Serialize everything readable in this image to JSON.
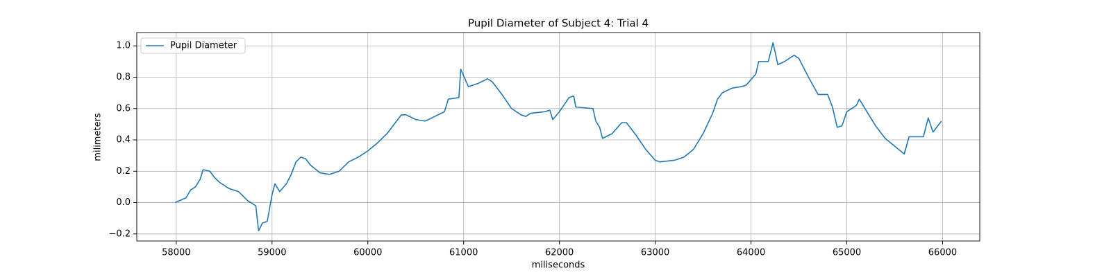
{
  "chart_data": {
    "type": "line",
    "title": "Pupil Diameter of Subject 4: Trial 4",
    "xlabel": "miliseconds",
    "ylabel": "milimeters",
    "x": [
      57988,
      58100,
      58150,
      58200,
      58250,
      58280,
      58350,
      58400,
      58450,
      58550,
      58650,
      58750,
      58830,
      58860,
      58900,
      58950,
      59000,
      59030,
      59080,
      59150,
      59200,
      59250,
      59300,
      59350,
      59400,
      59500,
      59600,
      59700,
      59800,
      59900,
      60000,
      60100,
      60200,
      60300,
      60350,
      60400,
      60500,
      60600,
      60700,
      60800,
      60840,
      60950,
      60970,
      61050,
      61150,
      61250,
      61300,
      61400,
      61500,
      61600,
      61650,
      61700,
      61850,
      61900,
      61930,
      62000,
      62100,
      62150,
      62170,
      62350,
      62380,
      62420,
      62450,
      62550,
      62650,
      62700,
      62800,
      62900,
      63000,
      63050,
      63200,
      63300,
      63400,
      63500,
      63600,
      63650,
      63700,
      63800,
      63900,
      63950,
      64050,
      64080,
      64180,
      64230,
      64280,
      64350,
      64450,
      64500,
      64600,
      64700,
      64800,
      64850,
      64900,
      64950,
      65000,
      65100,
      65130,
      65200,
      65300,
      65400,
      65500,
      65600,
      65650,
      65800,
      65850,
      65900,
      65988
    ],
    "series": [
      {
        "name": "Pupil Diameter",
        "color": "#1f77b4",
        "values": [
          0.0,
          0.03,
          0.08,
          0.1,
          0.15,
          0.21,
          0.2,
          0.16,
          0.13,
          0.09,
          0.07,
          0.01,
          -0.02,
          -0.18,
          -0.13,
          -0.12,
          0.05,
          0.12,
          0.07,
          0.12,
          0.18,
          0.26,
          0.29,
          0.28,
          0.24,
          0.19,
          0.18,
          0.2,
          0.26,
          0.29,
          0.33,
          0.38,
          0.44,
          0.52,
          0.56,
          0.56,
          0.53,
          0.52,
          0.55,
          0.58,
          0.66,
          0.67,
          0.85,
          0.74,
          0.76,
          0.79,
          0.77,
          0.69,
          0.6,
          0.56,
          0.55,
          0.57,
          0.58,
          0.59,
          0.53,
          0.58,
          0.67,
          0.68,
          0.61,
          0.6,
          0.52,
          0.48,
          0.41,
          0.44,
          0.51,
          0.51,
          0.43,
          0.34,
          0.27,
          0.26,
          0.27,
          0.29,
          0.34,
          0.44,
          0.57,
          0.66,
          0.7,
          0.73,
          0.74,
          0.75,
          0.82,
          0.9,
          0.9,
          1.02,
          0.88,
          0.9,
          0.94,
          0.92,
          0.8,
          0.69,
          0.69,
          0.61,
          0.48,
          0.49,
          0.58,
          0.62,
          0.66,
          0.59,
          0.49,
          0.41,
          0.36,
          0.31,
          0.42,
          0.42,
          0.54,
          0.45,
          0.52
        ]
      }
    ],
    "xlim": [
      57588,
      66388
    ],
    "xticks": [
      58000,
      59000,
      60000,
      61000,
      62000,
      63000,
      64000,
      65000,
      66000
    ],
    "ylim": [
      -0.245,
      1.085
    ],
    "yticks": [
      {
        "value": -0.2,
        "label": "−0.2"
      },
      {
        "value": 0,
        "label": "0.0"
      },
      0.2,
      0.4,
      0.6,
      0.8,
      {
        "value": 1,
        "label": "1.0"
      }
    ],
    "grid": true,
    "legend": "upper left"
  }
}
